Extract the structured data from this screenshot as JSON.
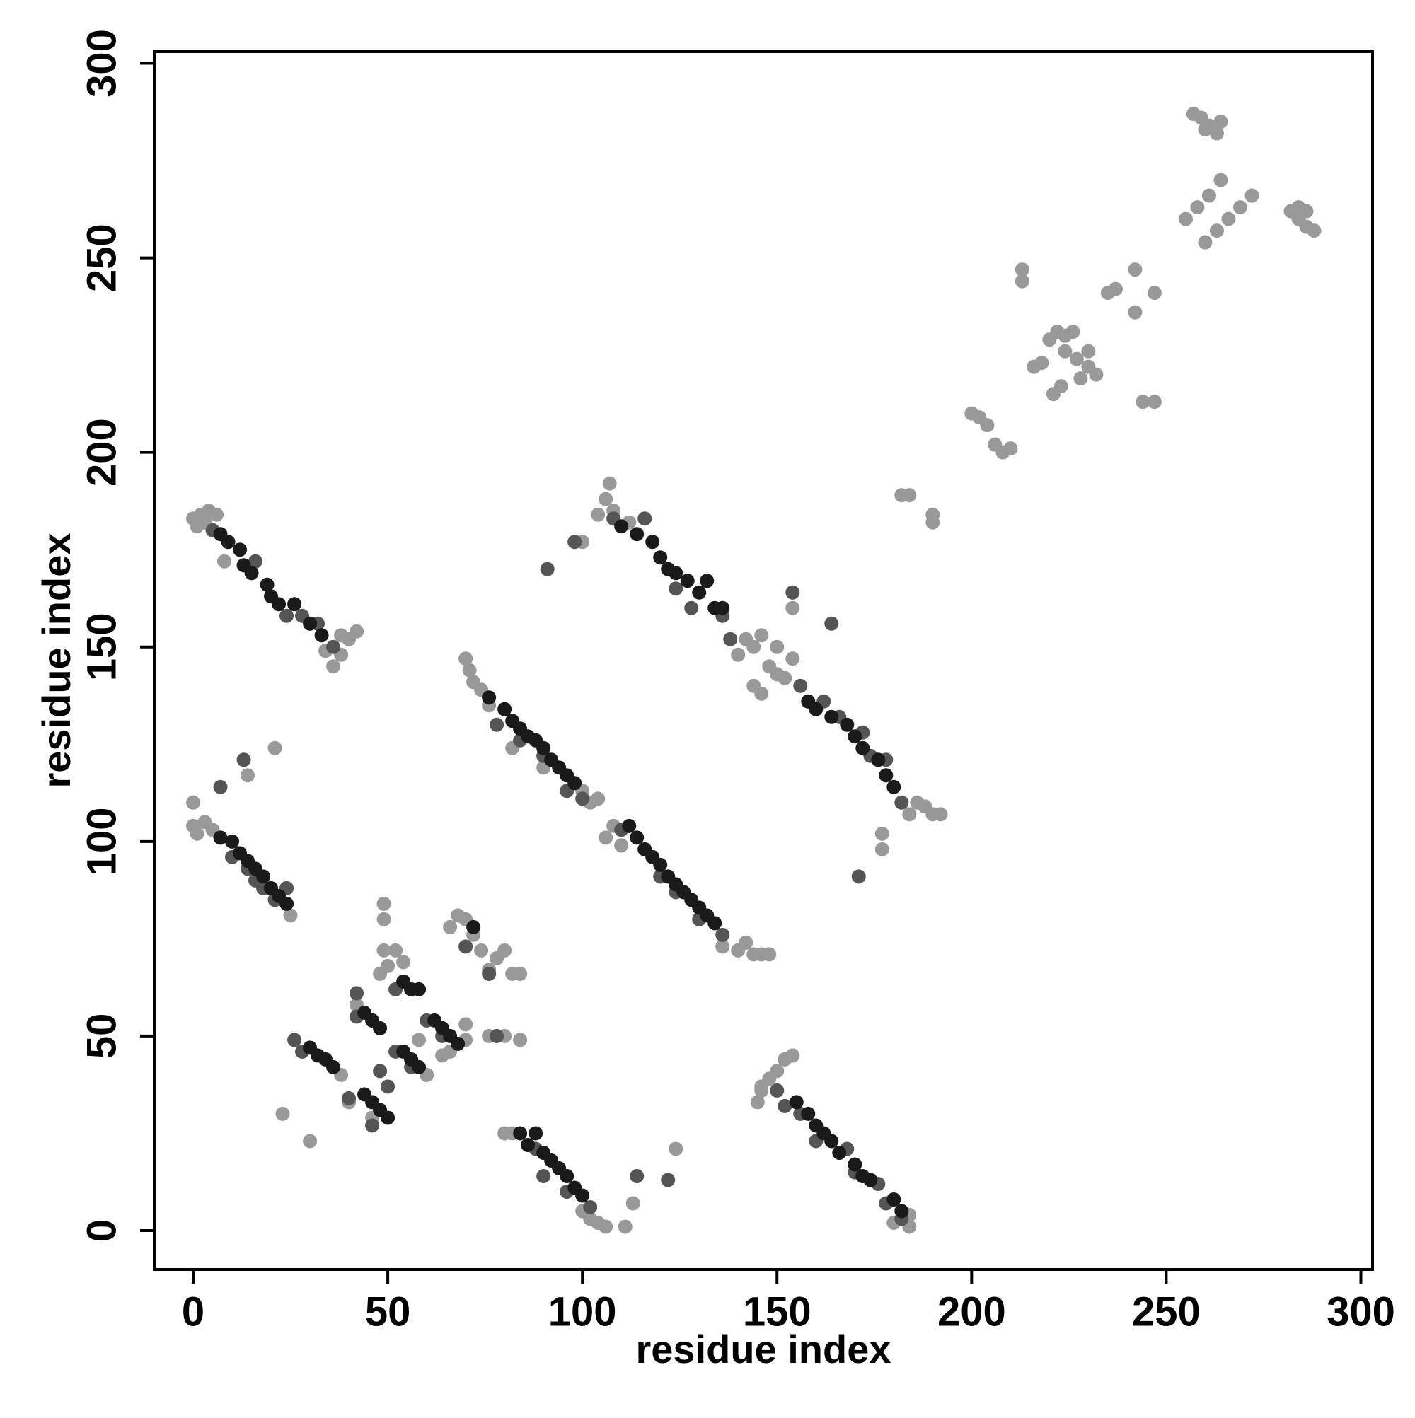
{
  "chart_data": {
    "type": "scatter",
    "x_label": "residue index",
    "y_label": "residue index",
    "xlim": [
      -10,
      303
    ],
    "ylim": [
      -10,
      303
    ],
    "xticks": [
      0,
      50,
      100,
      150,
      200,
      250,
      300
    ],
    "yticks": [
      0,
      50,
      100,
      150,
      200,
      250,
      300
    ],
    "grid": false,
    "series": [
      {
        "color": "#999999",
        "x": [
          0,
          1,
          2,
          3,
          4,
          6,
          8,
          34,
          36,
          38,
          40,
          42,
          38,
          0,
          0,
          1,
          3,
          5,
          14,
          21,
          25,
          70,
          71,
          72,
          74,
          76,
          82,
          90,
          100,
          102,
          104,
          106,
          108,
          110,
          136,
          140,
          144,
          146,
          148,
          142,
          104,
          106,
          107,
          108,
          112,
          100,
          140,
          142,
          144,
          146,
          148,
          150,
          152,
          154,
          144,
          146,
          150,
          154,
          186,
          188,
          190,
          192,
          184,
          177,
          177,
          145,
          146,
          148,
          150,
          152,
          154,
          146,
          184,
          180,
          184,
          80,
          82,
          100,
          102,
          104,
          106,
          111,
          113,
          124,
          23,
          30,
          38,
          40,
          42,
          46,
          49,
          49,
          49,
          52,
          48,
          50,
          54,
          58,
          60,
          64,
          66,
          66,
          68,
          70,
          72,
          74,
          76,
          78,
          80,
          82,
          84,
          76,
          80,
          84,
          70,
          70,
          182,
          184,
          190,
          190,
          200,
          202,
          204,
          206,
          208,
          210,
          213,
          213,
          216,
          218,
          220,
          222,
          224,
          226,
          224,
          227,
          230,
          232,
          230,
          228,
          221,
          223,
          235,
          237,
          242,
          242,
          247,
          244,
          247,
          255,
          258,
          261,
          264,
          260,
          263,
          266,
          269,
          272,
          257,
          259,
          261,
          263,
          264,
          260,
          282,
          284,
          286,
          288,
          286,
          284
        ],
        "values": [
          183,
          181,
          184,
          182,
          185,
          184,
          172,
          149,
          145,
          148,
          152,
          154,
          153,
          110,
          104,
          102,
          105,
          103,
          117,
          124,
          81,
          147,
          144,
          141,
          139,
          135,
          124,
          119,
          113,
          110,
          111,
          101,
          104,
          99,
          73,
          72,
          71,
          71,
          71,
          74,
          184,
          188,
          192,
          185,
          182,
          177,
          148,
          152,
          150,
          153,
          145,
          143,
          142,
          147,
          140,
          138,
          150,
          160,
          110,
          109,
          107,
          107,
          107,
          98,
          102,
          33,
          37,
          39,
          41,
          44,
          45,
          36,
          4,
          2,
          1,
          25,
          25,
          5,
          3,
          2,
          1,
          1,
          7,
          21,
          30,
          23,
          40,
          33,
          58,
          29,
          84,
          80,
          72,
          72,
          66,
          68,
          69,
          49,
          40,
          45,
          46,
          78,
          81,
          80,
          76,
          72,
          67,
          70,
          72,
          66,
          66,
          50,
          50,
          49,
          53,
          49,
          189,
          189,
          182,
          184,
          210,
          209,
          207,
          202,
          200,
          201,
          247,
          244,
          222,
          223,
          229,
          231,
          230,
          231,
          226,
          224,
          222,
          220,
          226,
          219,
          215,
          217,
          241,
          242,
          247,
          236,
          241,
          213,
          213,
          260,
          263,
          266,
          270,
          254,
          257,
          260,
          263,
          266,
          287,
          286,
          284,
          282,
          285,
          283,
          262,
          260,
          258,
          257,
          262,
          263
        ]
      },
      {
        "color": "#555555",
        "x": [
          5,
          16,
          24,
          28,
          32,
          36,
          10,
          14,
          16,
          18,
          21,
          24,
          7,
          13,
          78,
          84,
          90,
          96,
          100,
          110,
          120,
          124,
          130,
          136,
          108,
          116,
          124,
          128,
          136,
          138,
          154,
          164,
          91,
          98,
          156,
          162,
          166,
          172,
          174,
          178,
          182,
          171,
          150,
          152,
          156,
          160,
          168,
          170,
          176,
          178,
          182,
          88,
          90,
          96,
          102,
          114,
          122,
          26,
          28,
          40,
          42,
          46,
          52,
          52,
          50,
          60,
          64,
          70,
          76,
          78,
          42,
          56,
          48
        ],
        "values": [
          180,
          172,
          158,
          158,
          156,
          150,
          96,
          93,
          90,
          88,
          85,
          88,
          114,
          121,
          130,
          126,
          122,
          113,
          111,
          103,
          91,
          87,
          80,
          76,
          183,
          183,
          165,
          160,
          158,
          152,
          164,
          156,
          170,
          177,
          140,
          136,
          132,
          128,
          122,
          121,
          110,
          91,
          36,
          32,
          30,
          23,
          21,
          15,
          12,
          7,
          3,
          21,
          14,
          10,
          6,
          14,
          13,
          49,
          46,
          34,
          55,
          27,
          62,
          46,
          37,
          54,
          50,
          73,
          66,
          50,
          61,
          42,
          41
        ]
      },
      {
        "color": "#1a1a1a",
        "x": [
          7,
          9,
          12,
          13,
          15,
          19,
          20,
          22,
          26,
          30,
          33,
          7,
          10,
          12,
          14,
          16,
          18,
          20,
          22,
          24,
          76,
          80,
          82,
          84,
          86,
          88,
          90,
          92,
          94,
          96,
          98,
          112,
          114,
          116,
          118,
          120,
          122,
          124,
          126,
          128,
          130,
          132,
          134,
          110,
          114,
          118,
          120,
          122,
          124,
          127,
          130,
          132,
          134,
          136,
          158,
          160,
          164,
          168,
          170,
          172,
          176,
          178,
          180,
          155,
          158,
          160,
          162,
          164,
          166,
          170,
          172,
          174,
          180,
          182,
          84,
          86,
          88,
          90,
          92,
          94,
          96,
          98,
          100,
          30,
          32,
          34,
          36,
          44,
          46,
          48,
          50,
          44,
          46,
          48,
          54,
          56,
          58,
          54,
          56,
          58,
          62,
          64,
          66,
          68,
          72
        ],
        "values": [
          179,
          177,
          175,
          171,
          169,
          166,
          163,
          161,
          161,
          156,
          153,
          101,
          100,
          97,
          95,
          93,
          91,
          88,
          86,
          84,
          137,
          134,
          131,
          129,
          127,
          126,
          124,
          121,
          119,
          117,
          115,
          104,
          101,
          98,
          96,
          94,
          91,
          89,
          87,
          85,
          83,
          81,
          79,
          181,
          179,
          177,
          173,
          170,
          169,
          167,
          164,
          167,
          160,
          160,
          136,
          134,
          132,
          130,
          127,
          124,
          121,
          117,
          114,
          33,
          30,
          27,
          25,
          23,
          20,
          17,
          14,
          13,
          8,
          5,
          25,
          22,
          25,
          20,
          18,
          16,
          14,
          11,
          9,
          47,
          45,
          44,
          42,
          35,
          33,
          31,
          29,
          56,
          54,
          52,
          64,
          62,
          62,
          46,
          44,
          42,
          54,
          52,
          50,
          48,
          78
        ]
      }
    ]
  }
}
